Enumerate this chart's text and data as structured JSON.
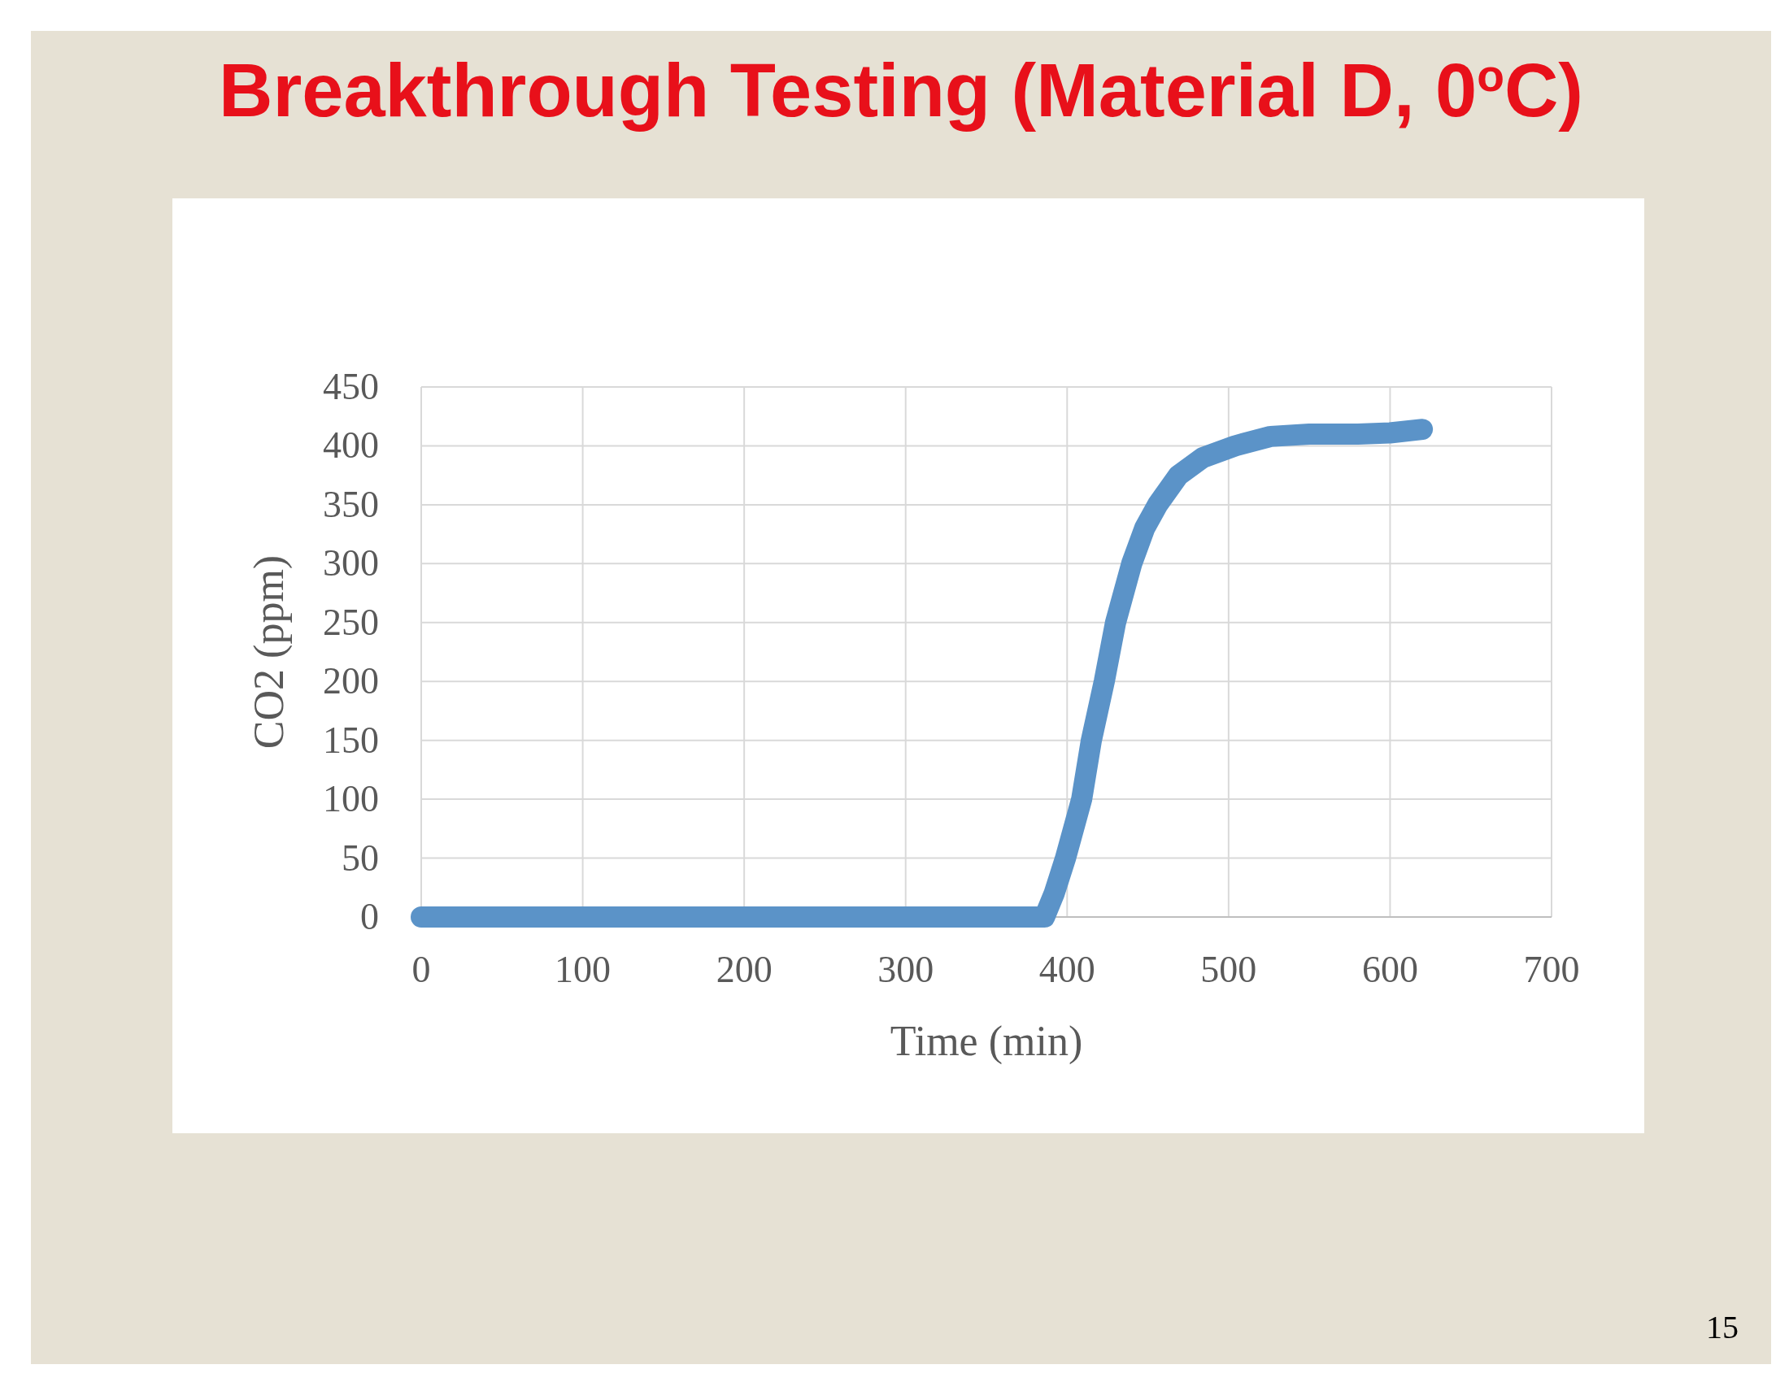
{
  "chart_data": {
    "type": "line",
    "title": "Breakthrough Testing (Material D, 0$^{o}$C)",
    "xlabel": "Time (min)",
    "ylabel": "CO2 (ppm)",
    "series": [
      {
        "color": "#5b93c8",
        "x": [
          0,
          100,
          200,
          300,
          386,
          392,
          399,
          409,
          415,
          423,
          430,
          440,
          448,
          456,
          469,
          484,
          504,
          526,
          550,
          580,
          600,
          620
        ],
        "values": [
          0,
          0,
          0,
          0,
          0,
          20,
          50,
          100,
          150,
          200,
          250,
          300,
          330,
          350,
          375,
          390,
          400,
          408,
          410,
          410,
          411,
          414
        ]
      }
    ],
    "xlim": [
      0,
      700
    ],
    "xticks": [
      0,
      100,
      200,
      300,
      400,
      500,
      600,
      700
    ],
    "ylim": [
      0,
      450
    ],
    "yticks": [
      0,
      50,
      100,
      150,
      200,
      250,
      300,
      350,
      400,
      450
    ],
    "grid": true,
    "line_style": "solid",
    "marker": "none",
    "annotations": [
      "15"
    ]
  }
}
